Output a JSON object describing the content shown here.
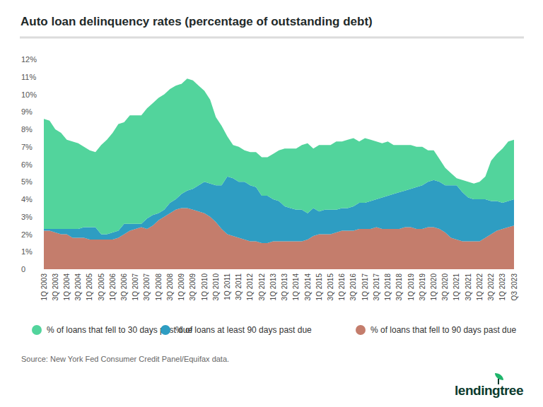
{
  "chart_data": {
    "type": "area",
    "title": "Auto loan delinquency rates (percentage of outstanding debt)",
    "stacked": true,
    "grid": false,
    "legend": "bottom",
    "source": "Source: New York Fed Consumer Credit Panel/Equifax data.",
    "logo": "lendingtree",
    "categories": [
      "1Q 2003",
      null,
      "3Q 2003",
      null,
      "1Q 2004",
      null,
      "3Q 2004",
      null,
      "1Q 2005",
      null,
      "3Q 2005",
      null,
      "1Q 2006",
      null,
      "3Q 2006",
      null,
      "1Q 2007",
      null,
      "3Q 2007",
      null,
      "1Q 2008",
      null,
      "3Q 2008",
      null,
      "1Q 2009",
      null,
      "3Q 2009",
      null,
      "1Q 2010",
      null,
      "3Q 2010",
      null,
      "1Q 2011",
      null,
      "3Q 2011",
      null,
      "1Q 2012",
      null,
      "3Q 2012",
      null,
      "1Q 2013",
      null,
      "3Q 2013",
      null,
      "1Q 2014",
      null,
      "3Q 2014",
      null,
      "1Q 2015",
      null,
      "3Q 2015",
      null,
      "1Q 2016",
      null,
      "3Q 2016",
      null,
      "1Q 2017",
      null,
      "3Q 2017",
      null,
      "1Q 2018",
      null,
      "3Q 2018",
      null,
      "1Q 2019",
      null,
      "3Q 2019",
      null,
      "1Q 2020",
      null,
      "3Q 2020",
      null,
      "1Q 2021",
      null,
      "3Q 2021",
      null,
      "1Q 2022",
      null,
      "3Q 2022",
      null,
      "1Q 2023",
      null,
      "Q3 2023"
    ],
    "ylim": [
      0,
      12
    ],
    "yticks": [
      0,
      {
        "value": 1,
        "label": "1%"
      },
      {
        "value": 2,
        "label": "2%"
      },
      {
        "value": 3,
        "label": "3%"
      },
      {
        "value": 4,
        "label": "4%"
      },
      {
        "value": 5,
        "label": "5%"
      },
      {
        "value": 6,
        "label": "6%"
      },
      {
        "value": 7,
        "label": "7%"
      },
      {
        "value": 8,
        "label": "8%"
      },
      {
        "value": 9,
        "label": "9%"
      },
      {
        "value": 10,
        "label": "10%"
      },
      {
        "value": 11,
        "label": "11%"
      },
      {
        "value": 12,
        "label": "12%"
      }
    ],
    "series": [
      {
        "name": "% of loans that fell to 30 days past due",
        "color": "#52d49c",
        "values": [
          6.3,
          6.2,
          5.7,
          5.5,
          5.1,
          5.0,
          4.9,
          4.6,
          4.4,
          4.3,
          5.1,
          5.4,
          5.7,
          6.1,
          5.8,
          6.2,
          6.2,
          6.2,
          6.3,
          6.4,
          6.6,
          6.6,
          6.5,
          6.5,
          6.3,
          6.4,
          6.2,
          5.7,
          5.2,
          4.8,
          3.9,
          3.4,
          2.3,
          1.9,
          2.0,
          1.8,
          1.9,
          2.0,
          2.2,
          2.2,
          2.6,
          2.9,
          3.3,
          3.4,
          3.5,
          3.7,
          4.0,
          3.4,
          3.8,
          3.7,
          3.7,
          3.9,
          3.8,
          3.9,
          3.9,
          3.5,
          3.7,
          3.5,
          3.3,
          3.1,
          3.1,
          2.8,
          2.7,
          2.6,
          2.5,
          2.3,
          2.2,
          1.8,
          1.7,
          1.3,
          1.0,
          0.7,
          0.4,
          0.7,
          0.9,
          0.9,
          1.0,
          1.3,
          2.3,
          2.7,
          3.1,
          3.4,
          3.4
        ]
      },
      {
        "name": "% of loans at least 90 days past due",
        "color": "#2e9dc2",
        "values": [
          0.1,
          0.1,
          0.2,
          0.3,
          0.3,
          0.5,
          0.5,
          0.6,
          0.7,
          0.7,
          0.3,
          0.3,
          0.4,
          0.4,
          0.6,
          0.4,
          0.3,
          0.2,
          0.6,
          0.6,
          0.4,
          0.4,
          0.6,
          0.6,
          0.8,
          1.0,
          1.2,
          1.5,
          1.8,
          1.9,
          2.1,
          2.5,
          3.3,
          3.3,
          3.2,
          3.3,
          3.2,
          3.1,
          2.7,
          2.7,
          2.4,
          2.3,
          2.0,
          1.9,
          1.8,
          1.8,
          1.5,
          1.6,
          1.3,
          1.4,
          1.4,
          1.3,
          1.3,
          1.3,
          1.4,
          1.5,
          1.5,
          1.6,
          1.6,
          1.8,
          1.9,
          2.0,
          2.1,
          2.1,
          2.2,
          2.4,
          2.5,
          2.6,
          2.7,
          2.7,
          2.7,
          3.0,
          3.1,
          2.8,
          2.5,
          2.4,
          2.4,
          2.2,
          1.9,
          1.7,
          1.5,
          1.5,
          1.5
        ]
      },
      {
        "name": "% of loans that fell to 90 days past due",
        "color": "#c47d6c",
        "values": [
          2.2,
          2.2,
          2.1,
          2.0,
          2.0,
          1.8,
          1.8,
          1.8,
          1.7,
          1.7,
          1.7,
          1.7,
          1.7,
          1.8,
          2.0,
          2.2,
          2.3,
          2.4,
          2.3,
          2.5,
          2.8,
          3.0,
          3.2,
          3.4,
          3.5,
          3.5,
          3.4,
          3.3,
          3.2,
          3.0,
          2.7,
          2.3,
          2.0,
          1.9,
          1.8,
          1.7,
          1.6,
          1.6,
          1.5,
          1.5,
          1.6,
          1.6,
          1.6,
          1.6,
          1.6,
          1.6,
          1.7,
          1.9,
          2.0,
          2.0,
          2.0,
          2.1,
          2.2,
          2.2,
          2.2,
          2.3,
          2.3,
          2.3,
          2.4,
          2.3,
          2.3,
          2.3,
          2.3,
          2.4,
          2.4,
          2.3,
          2.3,
          2.4,
          2.4,
          2.3,
          2.1,
          1.8,
          1.7,
          1.6,
          1.6,
          1.6,
          1.6,
          1.8,
          2.0,
          2.2,
          2.3,
          2.4,
          2.5
        ]
      }
    ]
  }
}
